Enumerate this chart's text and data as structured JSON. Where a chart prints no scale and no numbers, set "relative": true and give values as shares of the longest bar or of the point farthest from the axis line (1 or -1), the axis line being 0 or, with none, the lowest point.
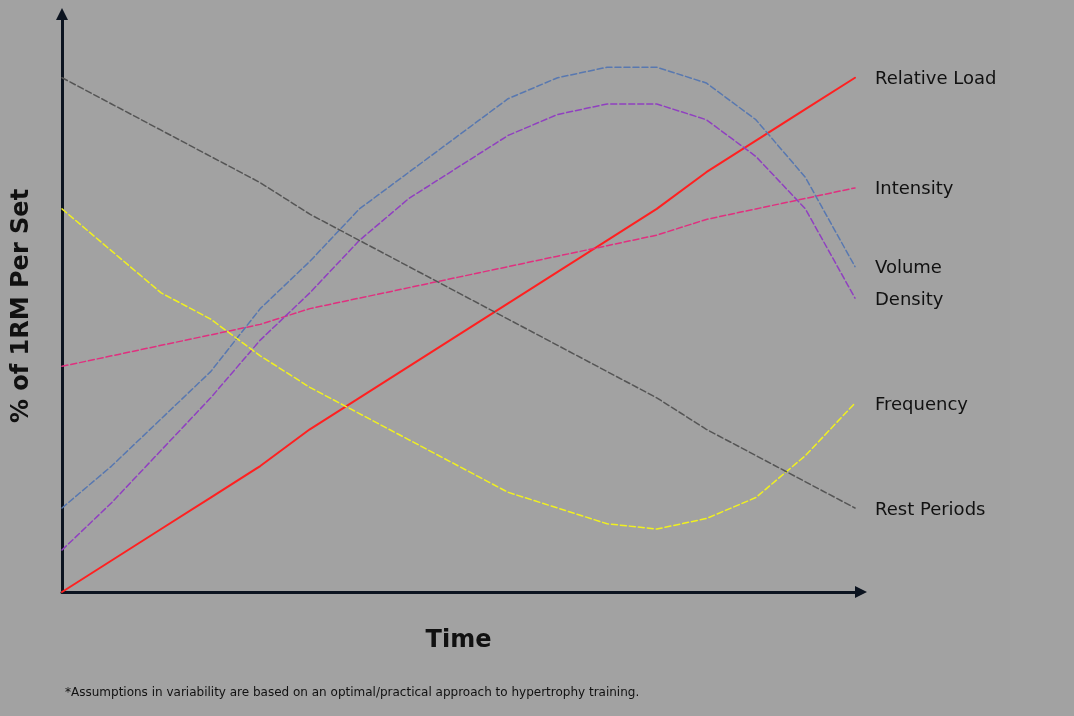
{
  "chart_data": {
    "type": "line",
    "relative": true,
    "xlabel": "Time",
    "ylabel": "% of 1RM Per Set",
    "annotations": [
      "*Assumptions in variability are based on an optimal/practical approach to hypertrophy training."
    ],
    "legend": false,
    "grid": false,
    "marker": "none",
    "categories": [
      null,
      null,
      null,
      null,
      null,
      null,
      null,
      null,
      null,
      null,
      null,
      null,
      null,
      null,
      null,
      null,
      null
    ],
    "series": [
      {
        "name": "Relative Load",
        "color": "#ff2020",
        "line_style": "solid",
        "values": [
          0,
          0.06,
          0.12,
          0.18,
          0.24,
          0.31,
          0.37,
          0.43,
          0.49,
          0.55,
          0.61,
          0.67,
          0.73,
          0.8,
          0.86,
          0.92,
          0.98
        ]
      },
      {
        "name": "Intensity",
        "color": "#e0307f",
        "line_style": "dashed",
        "values": [
          0.43,
          0.45,
          0.47,
          0.49,
          0.51,
          0.54,
          0.56,
          0.58,
          0.6,
          0.62,
          0.64,
          0.66,
          0.68,
          0.71,
          0.73,
          0.75,
          0.77
        ]
      },
      {
        "name": "Volume",
        "color": "#5878b0",
        "line_style": "dashed",
        "values": [
          0.16,
          0.24,
          0.33,
          0.42,
          0.54,
          0.63,
          0.73,
          0.8,
          0.87,
          0.94,
          0.98,
          1,
          1,
          0.97,
          0.9,
          0.79,
          0.62
        ]
      },
      {
        "name": "Density",
        "color": "#9040c0",
        "line_style": "dashed",
        "values": [
          0.08,
          0.17,
          0.27,
          0.37,
          0.48,
          0.57,
          0.67,
          0.75,
          0.81,
          0.87,
          0.91,
          0.93,
          0.93,
          0.9,
          0.83,
          0.73,
          0.56
        ]
      },
      {
        "name": "Frequency",
        "color": "#f0f020",
        "line_style": "dashed",
        "values": [
          0.73,
          0.65,
          0.57,
          0.52,
          0.45,
          0.39,
          0.34,
          0.29,
          0.24,
          0.19,
          0.16,
          0.13,
          0.12,
          0.14,
          0.18,
          0.26,
          0.36
        ]
      },
      {
        "name": "Rest Periods",
        "color": "#555555",
        "line_style": "dashed",
        "values": [
          0.98,
          0.93,
          0.88,
          0.83,
          0.78,
          0.72,
          0.67,
          0.62,
          0.57,
          0.52,
          0.47,
          0.42,
          0.37,
          0.31,
          0.26,
          0.21,
          0.16
        ]
      }
    ]
  }
}
